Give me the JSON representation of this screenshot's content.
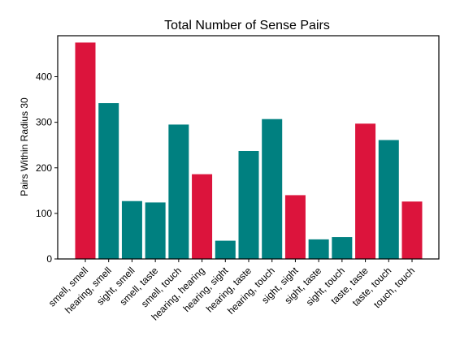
{
  "chart_data": {
    "type": "bar",
    "title": "Total Number of Sense Pairs",
    "xlabel": "",
    "ylabel": "Pairs Within Radius 30",
    "ylim": [
      0,
      490
    ],
    "yticks": [
      0,
      100,
      200,
      300,
      400
    ],
    "grid": false,
    "legend": "none",
    "categories": [
      "smell, smell",
      "hearing, smell",
      "sight, smell",
      "smell, taste",
      "smell, touch",
      "hearing, hearing",
      "hearing, sight",
      "hearing, taste",
      "hearing, touch",
      "sight, sight",
      "sight, taste",
      "sight, touch",
      "taste, taste",
      "taste, touch",
      "touch, touch"
    ],
    "values": [
      475,
      342,
      127,
      124,
      295,
      186,
      40,
      237,
      307,
      140,
      43,
      48,
      297,
      261,
      126
    ],
    "bar_colors": [
      "#dc143c",
      "#008080",
      "#008080",
      "#008080",
      "#008080",
      "#dc143c",
      "#008080",
      "#008080",
      "#008080",
      "#dc143c",
      "#008080",
      "#008080",
      "#dc143c",
      "#008080",
      "#dc143c"
    ]
  },
  "colors": {
    "same_sense": "#dc143c",
    "cross_sense": "#008080",
    "axis": "#000000",
    "background": "#ffffff"
  }
}
